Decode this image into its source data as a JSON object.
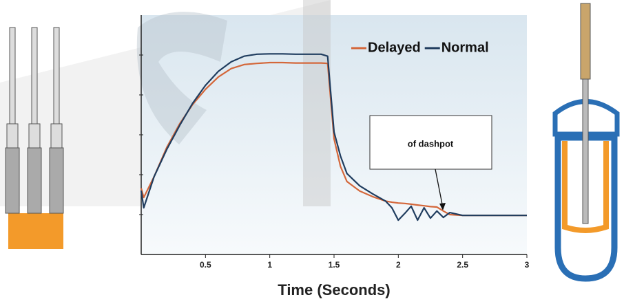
{
  "chart_data": {
    "type": "line",
    "x_label": "Time (Seconds)",
    "annotation": "of dashpot",
    "x": [
      0,
      0.02,
      0.1,
      0.2,
      0.3,
      0.4,
      0.5,
      0.6,
      0.7,
      0.8,
      0.9,
      1.0,
      1.1,
      1.2,
      1.3,
      1.4,
      1.45,
      1.5,
      1.55,
      1.6,
      1.7,
      1.8,
      1.9,
      1.95,
      2.0,
      2.05,
      2.1,
      2.15,
      2.2,
      2.25,
      2.3,
      2.35,
      2.4,
      2.5,
      2.6,
      2.8,
      3.0
    ],
    "series": [
      {
        "name": "Delayed",
        "color": "#d4673a",
        "values": [
          1.66,
          1.43,
          1.95,
          2.69,
          3.28,
          3.76,
          4.14,
          4.45,
          4.66,
          4.76,
          4.79,
          4.81,
          4.81,
          4.8,
          4.8,
          4.8,
          4.79,
          2.9,
          2.21,
          1.83,
          1.59,
          1.45,
          1.34,
          1.31,
          1.29,
          1.28,
          1.26,
          1.24,
          1.22,
          1.2,
          1.19,
          1.09,
          1.0,
          0.98,
          0.98,
          0.98,
          0.98
        ]
      },
      {
        "name": "Normal",
        "color": "#1f3c5e",
        "values": [
          1.6,
          1.17,
          1.95,
          2.64,
          3.24,
          3.79,
          4.24,
          4.59,
          4.83,
          4.97,
          5.02,
          5.03,
          5.03,
          5.02,
          5.02,
          5.02,
          4.97,
          3.07,
          2.47,
          2.03,
          1.72,
          1.52,
          1.34,
          1.17,
          0.86,
          1.03,
          1.21,
          0.86,
          1.17,
          0.91,
          1.09,
          0.93,
          1.05,
          0.98,
          0.98,
          0.98,
          0.98
        ]
      }
    ],
    "xlim": [
      0,
      3
    ],
    "xticks": [
      0.5,
      1,
      1.5,
      2,
      2.5,
      3
    ],
    "ylim": [
      0,
      6
    ],
    "yticks": [
      1,
      2,
      3,
      4,
      5
    ],
    "legend": "top-right"
  }
}
